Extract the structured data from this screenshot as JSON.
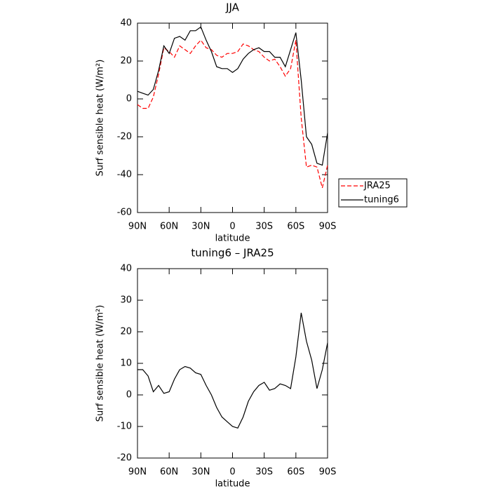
{
  "chart_data": [
    {
      "type": "line",
      "title": "JJA",
      "xlabel": "latitude",
      "ylabel": "Surf sensible heat (W/m²)",
      "x": [
        90,
        85,
        80,
        75,
        70,
        65,
        60,
        55,
        50,
        45,
        40,
        35,
        30,
        25,
        20,
        15,
        10,
        5,
        0,
        -5,
        -10,
        -15,
        -20,
        -25,
        -30,
        -35,
        -40,
        -45,
        -50,
        -55,
        -60,
        -65,
        -70,
        -75,
        -80,
        -85,
        -90
      ],
      "series": [
        {
          "name": "JRA25",
          "color": "#ff0000",
          "dash": true,
          "values": [
            -3,
            -5,
            -5,
            1,
            13,
            27,
            25,
            22,
            28,
            26,
            24,
            28,
            31,
            27,
            26,
            23,
            22,
            24,
            24,
            25,
            29,
            28,
            26,
            25,
            22,
            20,
            21,
            17,
            12,
            16,
            31,
            -10,
            -36,
            -35,
            -36,
            -47,
            -35
          ]
        },
        {
          "name": "tuning6",
          "color": "#000000",
          "dash": false,
          "values": [
            4,
            3,
            2,
            5,
            15,
            28,
            24,
            32,
            33,
            31,
            36,
            36,
            38,
            31,
            25,
            17,
            16,
            16,
            14,
            16,
            21,
            24,
            26,
            27,
            25,
            25,
            22,
            22,
            17,
            26,
            35,
            10,
            -20,
            -24,
            -34,
            -35,
            -18
          ]
        }
      ],
      "xlim": [
        90,
        -90
      ],
      "xticks": [
        {
          "value": 90,
          "label": "90N"
        },
        {
          "value": 60,
          "label": "60N"
        },
        {
          "value": 30,
          "label": "30N"
        },
        0,
        {
          "value": -30,
          "label": "30S"
        },
        {
          "value": -60,
          "label": "60S"
        },
        {
          "value": -90,
          "label": "90S"
        }
      ],
      "ylim": [
        -60,
        40
      ],
      "yticks": [
        -60,
        -40,
        -20,
        0,
        20,
        40
      ],
      "legend": "outside right"
    },
    {
      "type": "line",
      "title": "tuning6 – JRA25",
      "xlabel": "latitude",
      "ylabel": "Surf sensible heat (W/m²)",
      "x": [
        90,
        85,
        80,
        75,
        70,
        65,
        60,
        55,
        50,
        45,
        40,
        35,
        30,
        25,
        20,
        15,
        10,
        5,
        0,
        -5,
        -10,
        -15,
        -20,
        -25,
        -30,
        -35,
        -40,
        -45,
        -50,
        -55,
        -60,
        -65,
        -70,
        -75,
        -80,
        -85,
        -90
      ],
      "series": [
        {
          "color": "#000000",
          "dash": false,
          "values": [
            8,
            8,
            6,
            1,
            3,
            0.5,
            1,
            5,
            8,
            9,
            8.5,
            7,
            6.5,
            3,
            0,
            -4,
            -7,
            -8.5,
            -10,
            -10.5,
            -7,
            -2,
            1,
            3,
            4,
            1.5,
            2,
            3.5,
            3,
            2,
            12,
            26,
            17,
            11,
            2,
            8,
            16.5
          ]
        }
      ],
      "xlim": [
        90,
        -90
      ],
      "xticks": [
        {
          "value": 90,
          "label": "90N"
        },
        {
          "value": 60,
          "label": "60N"
        },
        {
          "value": 30,
          "label": "30N"
        },
        0,
        {
          "value": -30,
          "label": "30S"
        },
        {
          "value": -60,
          "label": "60S"
        },
        {
          "value": -90,
          "label": "90S"
        }
      ],
      "ylim": [
        -20,
        40
      ],
      "yticks": [
        -20,
        -10,
        0,
        10,
        20,
        30,
        40
      ]
    }
  ]
}
